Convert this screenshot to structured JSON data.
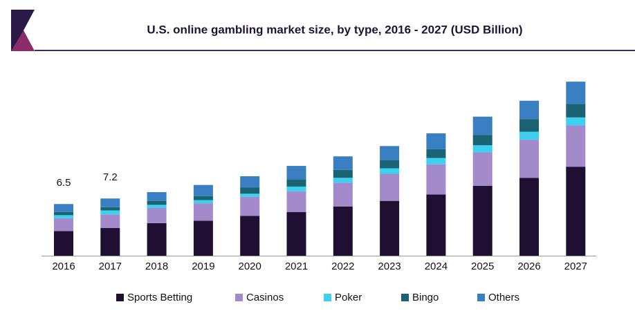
{
  "chart_data": {
    "type": "stacked_bar",
    "title": "U.S. online gambling market size, by type, 2016 - 2027 (USD Billion)",
    "categories": [
      "2016",
      "2017",
      "2018",
      "2019",
      "2020",
      "2021",
      "2022",
      "2023",
      "2024",
      "2025",
      "2026",
      "2027"
    ],
    "series": [
      {
        "name": "Sports Betting",
        "color": "#1e0f33",
        "values": [
          3.1,
          3.5,
          4.1,
          4.4,
          5.0,
          5.5,
          6.2,
          6.9,
          7.7,
          8.8,
          9.8,
          11.2
        ]
      },
      {
        "name": "Casinos",
        "color": "#a38bcb",
        "values": [
          1.6,
          1.7,
          1.9,
          2.2,
          2.4,
          2.6,
          3.0,
          3.4,
          3.8,
          4.2,
          4.8,
          5.2
        ]
      },
      {
        "name": "Poker",
        "color": "#3dd0f0",
        "values": [
          0.4,
          0.5,
          0.4,
          0.4,
          0.4,
          0.6,
          0.6,
          0.7,
          0.8,
          0.9,
          1.0,
          1.0
        ]
      },
      {
        "name": "Bingo",
        "color": "#1a6372",
        "values": [
          0.4,
          0.4,
          0.5,
          0.5,
          0.8,
          0.9,
          1.0,
          1.0,
          1.1,
          1.3,
          1.6,
          1.7
        ]
      },
      {
        "name": "Others",
        "color": "#3a7fc1",
        "values": [
          1.0,
          1.1,
          1.1,
          1.4,
          1.4,
          1.7,
          1.7,
          1.8,
          2.0,
          2.3,
          2.3,
          2.8
        ]
      }
    ],
    "total_labels": [
      6.5,
      7.2,
      null,
      null,
      null,
      null,
      null,
      null,
      null,
      null,
      null,
      null
    ]
  }
}
